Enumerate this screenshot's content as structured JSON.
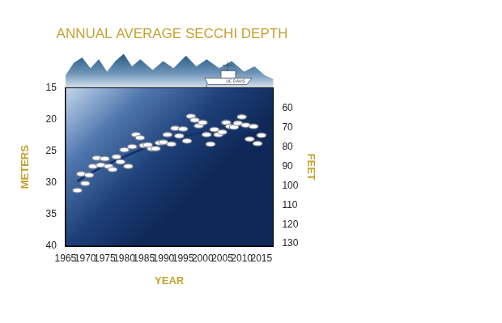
{
  "chart_data": {
    "type": "scatter",
    "title": "ANNUAL AVERAGE SECCHI DEPTH",
    "annotation": "UC DAVIS",
    "x_label": "YEAR",
    "y_label": "METERS",
    "y2_label": "FEET",
    "xlim": [
      1965,
      2018
    ],
    "xticks": [
      1965,
      1970,
      1975,
      1980,
      1985,
      1990,
      1995,
      2000,
      2005,
      2010,
      2015
    ],
    "ylim": [
      40,
      15
    ],
    "yticks": [
      15,
      20,
      25,
      30,
      35,
      40
    ],
    "y2lim": [
      131.2,
      49.2
    ],
    "y2ticks": [
      60,
      70,
      80,
      90,
      100,
      110,
      120,
      130
    ],
    "grid": false,
    "series": [
      {
        "type": "scatter",
        "marker": "ellipse",
        "color": "#ffffff",
        "x": [
          1968,
          1969,
          1970,
          1971,
          1972,
          1973,
          1974,
          1975,
          1976,
          1977,
          1978,
          1979,
          1980,
          1981,
          1982,
          1983,
          1984,
          1985,
          1986,
          1987,
          1988,
          1989,
          1990,
          1991,
          1992,
          1993,
          1994,
          1995,
          1996,
          1997,
          1998,
          1999,
          2000,
          2001,
          2002,
          2003,
          2004,
          2005,
          2006,
          2007,
          2008,
          2009,
          2010,
          2011,
          2012,
          2013,
          2014,
          2015
        ],
        "values": [
          31.2,
          28.6,
          30.1,
          28.8,
          27.4,
          26.1,
          27.2,
          26.2,
          27.4,
          27.9,
          25.9,
          26.7,
          24.8,
          27.4,
          24.3,
          22.4,
          22.9,
          24.1,
          24.0,
          24.6,
          24.6,
          23.7,
          23.6,
          22.4,
          23.9,
          21.4,
          22.6,
          21.5,
          23.4,
          19.5,
          20.1,
          21.0,
          20.5,
          22.4,
          23.9,
          21.6,
          22.4,
          22.0,
          20.5,
          21.1,
          21.2,
          20.6,
          19.6,
          20.9,
          23.1,
          21.1,
          23.8,
          22.5
        ]
      },
      {
        "type": "line",
        "line_style": "solid",
        "color": "#14306a",
        "x": [
          1968,
          1970,
          1975,
          1980,
          1985,
          1990,
          1995,
          2000,
          2005,
          2010,
          2015
        ],
        "values": [
          29.8,
          29.0,
          27.3,
          25.9,
          24.6,
          23.6,
          22.7,
          22.1,
          21.7,
          21.6,
          21.8
        ]
      }
    ]
  }
}
